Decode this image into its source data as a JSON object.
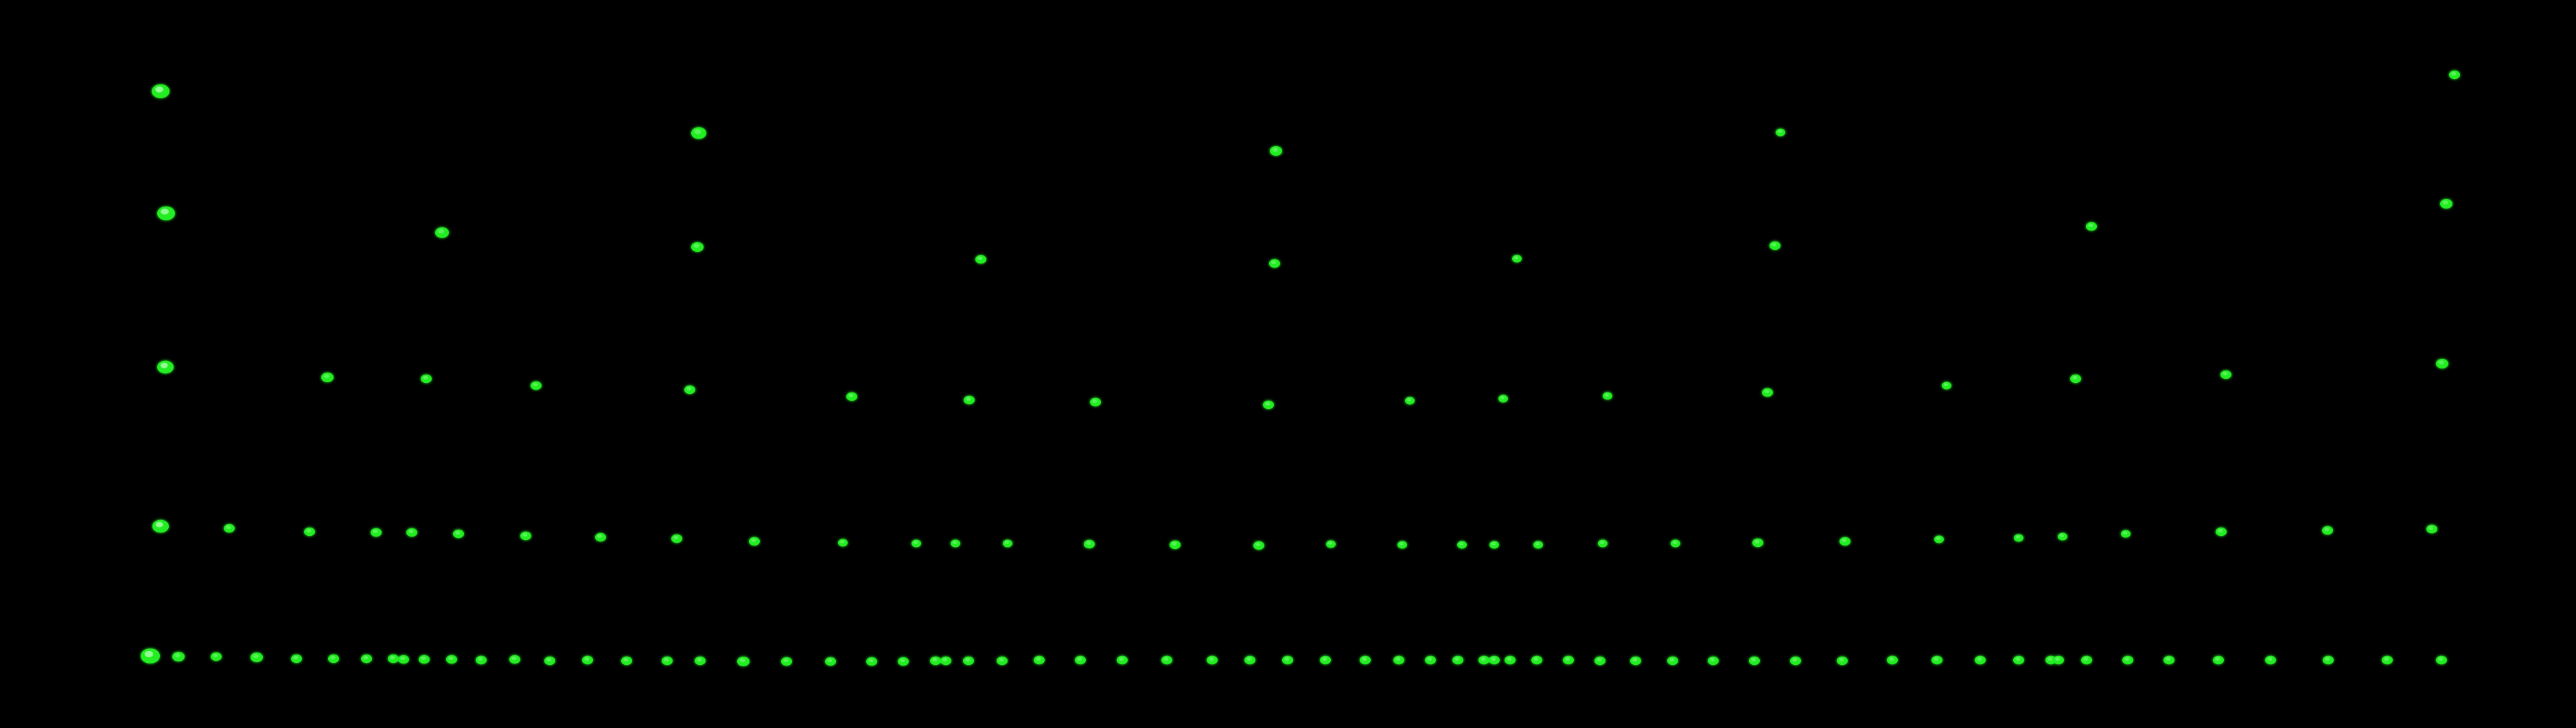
{
  "scene": {
    "background_color": "#000000",
    "spot_color": "#22ee22",
    "spot_highlight_color": "#b8ffb8"
  }
}
